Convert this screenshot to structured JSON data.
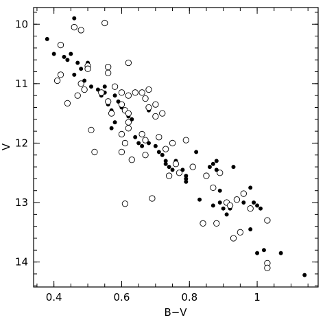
{
  "chart_data": {
    "type": "scatter",
    "xlabel": "B−V",
    "ylabel": "V",
    "xlim": [
      0.34,
      1.18
    ],
    "ylim": [
      14.42,
      9.72
    ],
    "y_inverted": true,
    "x_major_ticks": [
      0.4,
      0.6,
      0.8,
      1.0
    ],
    "x_tick_labels": [
      "0.4",
      "0.6",
      "0.8",
      "1"
    ],
    "x_minor_step": 0.05,
    "y_major_ticks": [
      10,
      11,
      12,
      13,
      14
    ],
    "y_tick_labels": [
      "10",
      "11",
      "12",
      "13",
      "14"
    ],
    "y_minor_step": 0.2,
    "grid": false,
    "legend": "none",
    "colors": {
      "filled_marker": "#000000",
      "open_marker_edge": "#000000",
      "open_marker_fill": "#ffffff"
    },
    "series": [
      {
        "marker": "filled-circle",
        "points": [
          [
            0.38,
            10.25
          ],
          [
            0.4,
            10.5
          ],
          [
            0.42,
            10.35
          ],
          [
            0.43,
            10.55
          ],
          [
            0.44,
            10.6
          ],
          [
            0.45,
            10.5
          ],
          [
            0.46,
            9.9
          ],
          [
            0.47,
            10.65
          ],
          [
            0.48,
            10.75
          ],
          [
            0.5,
            10.65
          ],
          [
            0.46,
            10.85
          ],
          [
            0.49,
            10.95
          ],
          [
            0.51,
            11.05
          ],
          [
            0.53,
            11.1
          ],
          [
            0.55,
            11.15
          ],
          [
            0.54,
            11.2
          ],
          [
            0.55,
            11.05
          ],
          [
            0.56,
            11.35
          ],
          [
            0.57,
            11.45
          ],
          [
            0.58,
            11.2
          ],
          [
            0.59,
            11.3
          ],
          [
            0.6,
            11.4
          ],
          [
            0.62,
            11.55
          ],
          [
            0.63,
            11.6
          ],
          [
            0.58,
            11.65
          ],
          [
            0.57,
            11.75
          ],
          [
            0.62,
            11.75
          ],
          [
            0.64,
            11.9
          ],
          [
            0.65,
            12.0
          ],
          [
            0.66,
            12.05
          ],
          [
            0.68,
            12.0
          ],
          [
            0.68,
            11.45
          ],
          [
            0.7,
            12.05
          ],
          [
            0.71,
            12.15
          ],
          [
            0.72,
            12.2
          ],
          [
            0.73,
            12.3
          ],
          [
            0.73,
            12.35
          ],
          [
            0.74,
            12.4
          ],
          [
            0.75,
            12.45
          ],
          [
            0.76,
            12.3
          ],
          [
            0.77,
            12.5
          ],
          [
            0.78,
            12.45
          ],
          [
            0.79,
            12.55
          ],
          [
            0.79,
            12.6
          ],
          [
            0.79,
            12.65
          ],
          [
            0.82,
            12.15
          ],
          [
            0.83,
            12.95
          ],
          [
            0.86,
            12.4
          ],
          [
            0.87,
            12.35
          ],
          [
            0.88,
            12.45
          ],
          [
            0.89,
            12.8
          ],
          [
            0.87,
            13.05
          ],
          [
            0.89,
            13.0
          ],
          [
            0.9,
            13.1
          ],
          [
            0.92,
            13.1
          ],
          [
            0.93,
            12.4
          ],
          [
            0.96,
            13.0
          ],
          [
            0.98,
            12.75
          ],
          [
            0.99,
            13.0
          ],
          [
            1.0,
            13.05
          ],
          [
            1.01,
            13.1
          ],
          [
            0.93,
            13.6
          ],
          [
            0.95,
            13.5
          ],
          [
            1.0,
            13.85
          ],
          [
            1.02,
            13.8
          ],
          [
            1.07,
            13.85
          ],
          [
            0.98,
            13.45
          ],
          [
            1.14,
            14.22
          ],
          [
            0.88,
            12.3
          ],
          [
            0.91,
            13.2
          ]
        ]
      },
      {
        "marker": "open-circle",
        "points": [
          [
            0.42,
            10.35
          ],
          [
            0.46,
            10.05
          ],
          [
            0.48,
            10.1
          ],
          [
            0.55,
            9.98
          ],
          [
            0.5,
            10.7
          ],
          [
            0.56,
            10.72
          ],
          [
            0.56,
            10.82
          ],
          [
            0.62,
            10.65
          ],
          [
            0.41,
            10.95
          ],
          [
            0.42,
            10.85
          ],
          [
            0.44,
            11.33
          ],
          [
            0.47,
            11.2
          ],
          [
            0.49,
            11.1
          ],
          [
            0.48,
            11.0
          ],
          [
            0.54,
            11.15
          ],
          [
            0.56,
            11.3
          ],
          [
            0.58,
            11.05
          ],
          [
            0.6,
            11.15
          ],
          [
            0.6,
            11.35
          ],
          [
            0.61,
            11.45
          ],
          [
            0.62,
            11.2
          ],
          [
            0.64,
            11.15
          ],
          [
            0.66,
            11.15
          ],
          [
            0.67,
            11.25
          ],
          [
            0.68,
            11.1
          ],
          [
            0.7,
            11.35
          ],
          [
            0.72,
            11.5
          ],
          [
            0.7,
            11.55
          ],
          [
            0.68,
            11.4
          ],
          [
            0.62,
            11.65
          ],
          [
            0.62,
            11.75
          ],
          [
            0.6,
            11.85
          ],
          [
            0.66,
            11.85
          ],
          [
            0.67,
            11.95
          ],
          [
            0.71,
            11.9
          ],
          [
            0.51,
            11.78
          ],
          [
            0.52,
            12.15
          ],
          [
            0.61,
            12.0
          ],
          [
            0.63,
            12.28
          ],
          [
            0.67,
            12.2
          ],
          [
            0.73,
            12.1
          ],
          [
            0.75,
            12.0
          ],
          [
            0.79,
            11.95
          ],
          [
            0.76,
            12.35
          ],
          [
            0.77,
            12.5
          ],
          [
            0.81,
            12.4
          ],
          [
            0.74,
            12.55
          ],
          [
            0.85,
            12.55
          ],
          [
            0.87,
            12.75
          ],
          [
            0.89,
            12.5
          ],
          [
            0.91,
            13.0
          ],
          [
            0.92,
            13.05
          ],
          [
            0.94,
            12.95
          ],
          [
            0.96,
            12.85
          ],
          [
            0.98,
            13.1
          ],
          [
            0.84,
            13.35
          ],
          [
            0.88,
            13.35
          ],
          [
            0.93,
            13.6
          ],
          [
            0.95,
            13.5
          ],
          [
            1.03,
            13.3
          ],
          [
            1.03,
            14.02
          ],
          [
            1.03,
            14.1
          ],
          [
            0.61,
            13.02
          ],
          [
            0.69,
            12.93
          ],
          [
            0.6,
            12.15
          ],
          [
            0.57,
            11.5
          ],
          [
            0.62,
            11.5
          ],
          [
            0.5,
            10.75
          ]
        ]
      }
    ]
  }
}
